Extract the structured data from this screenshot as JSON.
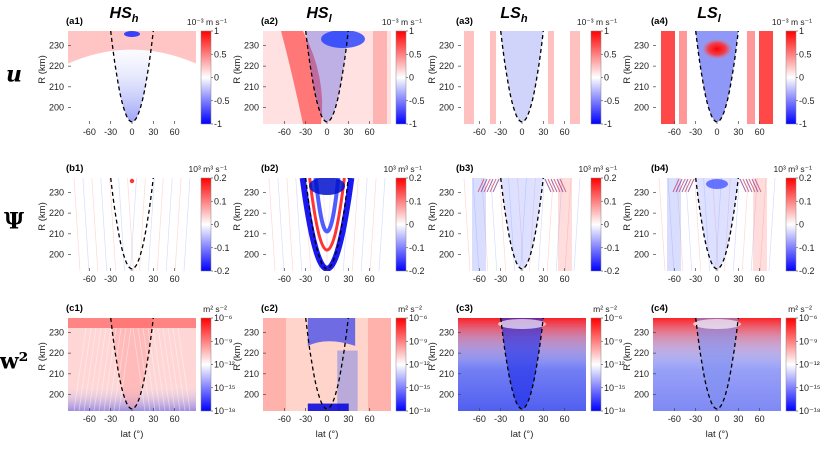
{
  "chart_data": {
    "type": "heatmap",
    "columns": [
      {
        "id": "HSh",
        "base": "HS",
        "sub": "h"
      },
      {
        "id": "HSl",
        "base": "HS",
        "sub": "l"
      },
      {
        "id": "LSh",
        "base": "LS",
        "sub": "h"
      },
      {
        "id": "LSl",
        "base": "LS",
        "sub": "l"
      }
    ],
    "rows": [
      {
        "id": "u",
        "label": "u",
        "labels": [
          "(a1)",
          "(a2)",
          "(a3)",
          "(a4)"
        ],
        "unit": "10⁻³ m s⁻¹",
        "cbar_ticks": [
          "1",
          "0.5",
          "0",
          "-0.5",
          "-1"
        ],
        "cbar_range": [
          -1,
          1
        ]
      },
      {
        "id": "psi",
        "label": "Ψ",
        "labels": [
          "(b1)",
          "(b2)",
          "(b3)",
          "(b4)"
        ],
        "unit": "10³ m³ s⁻¹",
        "cbar_ticks": [
          "0.2",
          "0.1",
          "0",
          "-0.1",
          "-0.2"
        ],
        "cbar_range": [
          -0.2,
          0.2
        ]
      },
      {
        "id": "w2",
        "label": "w²",
        "labels": [
          "(c1)",
          "(c2)",
          "(c3)",
          "(c4)"
        ],
        "unit": "m² s⁻²",
        "cbar_ticks": [
          "10⁻⁶",
          "10⁻⁹",
          "10⁻¹²",
          "10⁻¹⁵",
          "10⁻¹⁸"
        ],
        "cbar_range": [
          "1e-18",
          "1e-6"
        ]
      }
    ],
    "x_ticks": [
      "-60",
      "-30",
      "0",
      "30",
      "60"
    ],
    "x_tick_values": [
      -60,
      -30,
      0,
      30,
      60
    ],
    "xlim": [
      -90,
      90
    ],
    "y_ticks": [
      "230",
      "220",
      "210",
      "200"
    ],
    "y_tick_values": [
      230,
      220,
      210,
      200
    ],
    "ylim": [
      192,
      237
    ],
    "xlabel": "lat (°)",
    "ylabel": "R (km)",
    "boundary_curve": {
      "style": "dashed",
      "min_R": 193,
      "x_at_top": 30
    },
    "colormap": [
      "#0000ff",
      "#ffffff",
      "#ff0000"
    ]
  }
}
